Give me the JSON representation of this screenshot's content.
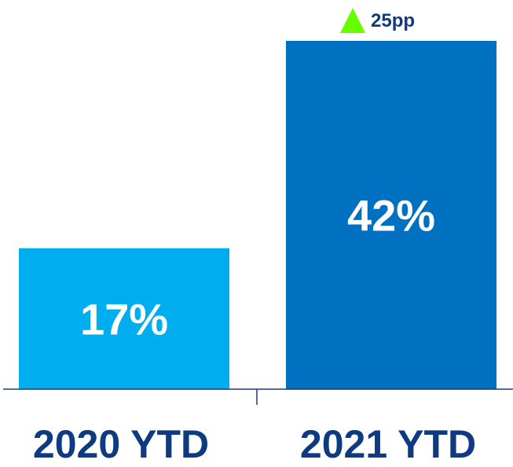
{
  "chart_data": {
    "type": "bar",
    "categories": [
      "2020 YTD",
      "2021 YTD"
    ],
    "values": [
      17,
      42
    ],
    "data_labels": [
      "17%",
      "42%"
    ],
    "ylim": [
      0,
      42
    ],
    "grid": false,
    "bar_colors": [
      "#00aeef",
      "#0070c0"
    ],
    "annotation": {
      "text": "25pp",
      "icon": "triangle-up-icon",
      "color": "#66ff00",
      "category": "2021 YTD"
    }
  },
  "colors": {
    "axis": "#1f3a6e",
    "category_text": "#0d3a80",
    "bar_text": "#ffffff"
  }
}
